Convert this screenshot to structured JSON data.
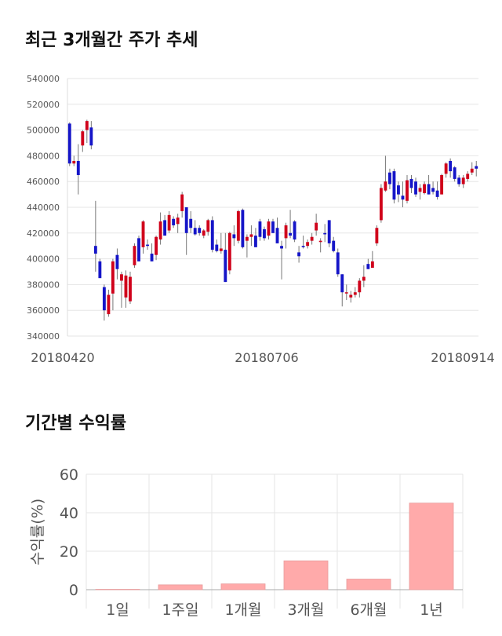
{
  "chart_data": [
    {
      "type": "candlestick",
      "title": "최근 3개월간 주가 추세",
      "x_tick_labels": [
        "20180420",
        "20180706",
        "20180914"
      ],
      "y_ticks": [
        340000,
        360000,
        380000,
        400000,
        420000,
        440000,
        460000,
        480000,
        500000,
        520000,
        540000
      ],
      "ylim": [
        340000,
        540000
      ],
      "grid": true,
      "up_color": "#d0021b",
      "down_color": "#1515c8",
      "ohlc": [
        [
          505000,
          506000,
          472000,
          474000
        ],
        [
          474000,
          480000,
          472000,
          476000
        ],
        [
          476000,
          489000,
          450000,
          465000
        ],
        [
          488000,
          500000,
          483000,
          499000
        ],
        [
          500000,
          508000,
          490000,
          507000
        ],
        [
          502000,
          507000,
          485000,
          488000
        ],
        [
          410000,
          445000,
          390000,
          404000
        ],
        [
          398000,
          400000,
          387000,
          385000
        ],
        [
          378000,
          380000,
          352000,
          360000
        ],
        [
          357000,
          376000,
          355000,
          372000
        ],
        [
          373000,
          400000,
          360000,
          398000
        ],
        [
          403000,
          408000,
          384000,
          392000
        ],
        [
          383000,
          390000,
          362000,
          388000
        ],
        [
          370000,
          391000,
          362000,
          387000
        ],
        [
          367000,
          390000,
          365000,
          386000
        ],
        [
          395000,
          412000,
          393000,
          410000
        ],
        [
          416000,
          418000,
          398000,
          398000
        ],
        [
          409000,
          430000,
          404000,
          429000
        ],
        [
          411000,
          415000,
          407000,
          410000
        ],
        [
          404000,
          412000,
          398000,
          398000
        ],
        [
          403000,
          418000,
          399000,
          417000
        ],
        [
          415000,
          436000,
          411000,
          429000
        ],
        [
          430000,
          434000,
          418000,
          418000
        ],
        [
          422000,
          437000,
          420000,
          434000
        ],
        [
          431000,
          433000,
          424000,
          426000
        ],
        [
          427000,
          435000,
          420000,
          432000
        ],
        [
          437000,
          452000,
          432000,
          450000
        ],
        [
          440000,
          440000,
          403000,
          420000
        ],
        [
          431000,
          437000,
          420000,
          424000
        ],
        [
          424000,
          430000,
          418000,
          419000
        ],
        [
          424000,
          426000,
          418000,
          420000
        ],
        [
          418000,
          423000,
          416000,
          422000
        ],
        [
          421000,
          431000,
          418000,
          430000
        ],
        [
          430000,
          433000,
          405000,
          407000
        ],
        [
          411000,
          415000,
          405000,
          406000
        ],
        [
          406000,
          420000,
          404000,
          408000
        ],
        [
          407000,
          420000,
          382000,
          382000
        ],
        [
          391000,
          421000,
          388000,
          420000
        ],
        [
          419000,
          426000,
          410000,
          416000
        ],
        [
          414000,
          438000,
          412000,
          437000
        ],
        [
          438000,
          439000,
          408000,
          409000
        ],
        [
          414000,
          419000,
          401000,
          417000
        ],
        [
          417000,
          426000,
          410000,
          419000
        ],
        [
          418000,
          424000,
          409000,
          409000
        ],
        [
          429000,
          431000,
          414000,
          417000
        ],
        [
          423000,
          425000,
          414000,
          416000
        ],
        [
          418000,
          431000,
          415000,
          429000
        ],
        [
          429000,
          431000,
          420000,
          420000
        ],
        [
          424000,
          432000,
          414000,
          412000
        ],
        [
          410000,
          414000,
          384000,
          408000
        ],
        [
          416000,
          428000,
          408000,
          426000
        ],
        [
          420000,
          438000,
          416000,
          418000
        ],
        [
          429000,
          430000,
          413000,
          415000
        ],
        [
          405000,
          410000,
          397000,
          402000
        ],
        [
          410000,
          418000,
          408000,
          409000
        ],
        [
          410000,
          415000,
          408000,
          413000
        ],
        [
          414000,
          420000,
          411000,
          417000
        ],
        [
          422000,
          435000,
          418000,
          428000
        ],
        [
          413000,
          416000,
          405000,
          414000
        ],
        [
          420000,
          427000,
          413000,
          419000
        ],
        [
          430000,
          430000,
          409000,
          412000
        ],
        [
          414000,
          417000,
          405000,
          406000
        ],
        [
          405000,
          408000,
          386000,
          388000
        ],
        [
          388000,
          388000,
          363000,
          374000
        ],
        [
          374000,
          380000,
          368000,
          374000
        ],
        [
          370000,
          375000,
          366000,
          372000
        ],
        [
          372000,
          378000,
          370000,
          374000
        ],
        [
          374000,
          385000,
          370000,
          383000
        ],
        [
          383000,
          395000,
          378000,
          386000
        ],
        [
          396000,
          400000,
          392000,
          392000
        ],
        [
          393000,
          406000,
          393000,
          398000
        ],
        [
          412000,
          426000,
          410000,
          424000
        ],
        [
          430000,
          458000,
          428000,
          455000
        ],
        [
          453000,
          480000,
          452000,
          460000
        ],
        [
          467000,
          470000,
          454000,
          458000
        ],
        [
          468000,
          470000,
          443000,
          446000
        ],
        [
          457000,
          460000,
          444000,
          450000
        ],
        [
          449000,
          460000,
          440000,
          446000
        ],
        [
          445000,
          465000,
          443000,
          461000
        ],
        [
          462000,
          465000,
          451000,
          455000
        ],
        [
          460000,
          463000,
          448000,
          450000
        ],
        [
          452000,
          458000,
          446000,
          455000
        ],
        [
          451000,
          460000,
          450000,
          458000
        ],
        [
          458000,
          465000,
          450000,
          450000
        ],
        [
          455000,
          460000,
          450000,
          452000
        ],
        [
          453000,
          460000,
          446000,
          448000
        ],
        [
          450000,
          466000,
          450000,
          465000
        ],
        [
          466000,
          475000,
          463000,
          474000
        ],
        [
          476000,
          478000,
          463000,
          468000
        ],
        [
          471000,
          472000,
          460000,
          462000
        ],
        [
          463000,
          465000,
          456000,
          458000
        ],
        [
          458000,
          465000,
          455000,
          463000
        ],
        [
          462000,
          468000,
          460000,
          466000
        ],
        [
          467000,
          475000,
          465000,
          470000
        ],
        [
          472000,
          476000,
          464000,
          470000
        ]
      ]
    },
    {
      "type": "bar",
      "title": "기간별 수익률",
      "ylabel": "수익률(%)",
      "categories": [
        "1일",
        "1주일",
        "1개월",
        "3개월",
        "6개월",
        "1년"
      ],
      "values": [
        0.2,
        2.5,
        3.0,
        15.0,
        5.5,
        45.0
      ],
      "ylim": [
        0,
        60
      ],
      "y_ticks": [
        0,
        20,
        40,
        60
      ],
      "grid": true,
      "bar_color": "#ffaaaa"
    }
  ]
}
